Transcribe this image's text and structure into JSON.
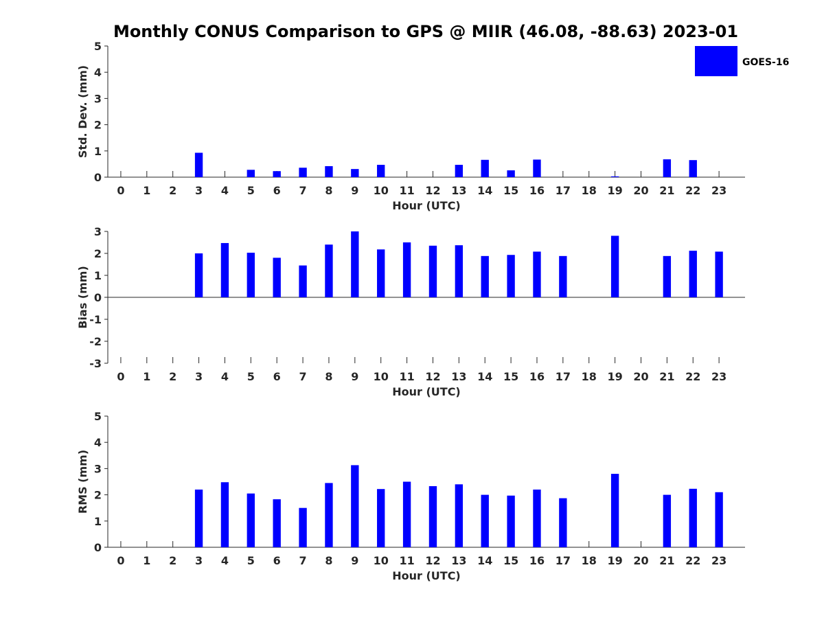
{
  "title": "Monthly CONUS Comparison to GPS @ MIIR (46.08, -88.63) 2023-01",
  "legend": {
    "label": "GOES-16",
    "color": "#0000ff",
    "placement": "top-right"
  },
  "chart_data": [
    {
      "type": "bar",
      "ylabel": "Std. Dev. (mm)",
      "xlabel": "Hour (UTC)",
      "ylim": [
        0,
        5
      ],
      "yticks": [
        0,
        1,
        2,
        3,
        4,
        5
      ],
      "x": [
        0,
        1,
        2,
        3,
        4,
        5,
        6,
        7,
        8,
        9,
        10,
        11,
        12,
        13,
        14,
        15,
        16,
        17,
        18,
        19,
        20,
        21,
        22,
        23
      ],
      "series": [
        {
          "name": "GOES-16",
          "values": [
            null,
            null,
            null,
            0.93,
            null,
            0.28,
            0.23,
            0.36,
            0.42,
            0.31,
            0.47,
            null,
            null,
            0.47,
            0.66,
            0.26,
            0.67,
            null,
            null,
            0.03,
            null,
            0.68,
            0.65,
            null
          ]
        }
      ]
    },
    {
      "type": "bar",
      "ylabel": "Bias (mm)",
      "xlabel": "Hour (UTC)",
      "ylim": [
        -3,
        3
      ],
      "yticks": [
        -3,
        -2,
        -1,
        0,
        1,
        2,
        3
      ],
      "x": [
        0,
        1,
        2,
        3,
        4,
        5,
        6,
        7,
        8,
        9,
        10,
        11,
        12,
        13,
        14,
        15,
        16,
        17,
        18,
        19,
        20,
        21,
        22,
        23
      ],
      "series": [
        {
          "name": "GOES-16",
          "values": [
            null,
            null,
            null,
            2.0,
            2.47,
            2.03,
            1.8,
            1.45,
            2.4,
            3.0,
            2.18,
            2.5,
            2.35,
            2.37,
            1.88,
            1.93,
            2.08,
            1.88,
            null,
            2.8,
            null,
            1.88,
            2.12,
            2.08
          ]
        }
      ]
    },
    {
      "type": "bar",
      "ylabel": "RMS (mm)",
      "xlabel": "Hour (UTC)",
      "ylim": [
        0,
        5
      ],
      "yticks": [
        0,
        1,
        2,
        3,
        4,
        5
      ],
      "x": [
        0,
        1,
        2,
        3,
        4,
        5,
        6,
        7,
        8,
        9,
        10,
        11,
        12,
        13,
        14,
        15,
        16,
        17,
        18,
        19,
        20,
        21,
        22,
        23
      ],
      "series": [
        {
          "name": "GOES-16",
          "values": [
            null,
            null,
            null,
            2.2,
            2.48,
            2.05,
            1.83,
            1.5,
            2.45,
            3.13,
            2.22,
            2.5,
            2.33,
            2.4,
            2.0,
            1.97,
            2.2,
            1.87,
            null,
            2.8,
            null,
            2.0,
            2.23,
            2.1
          ]
        }
      ]
    }
  ]
}
